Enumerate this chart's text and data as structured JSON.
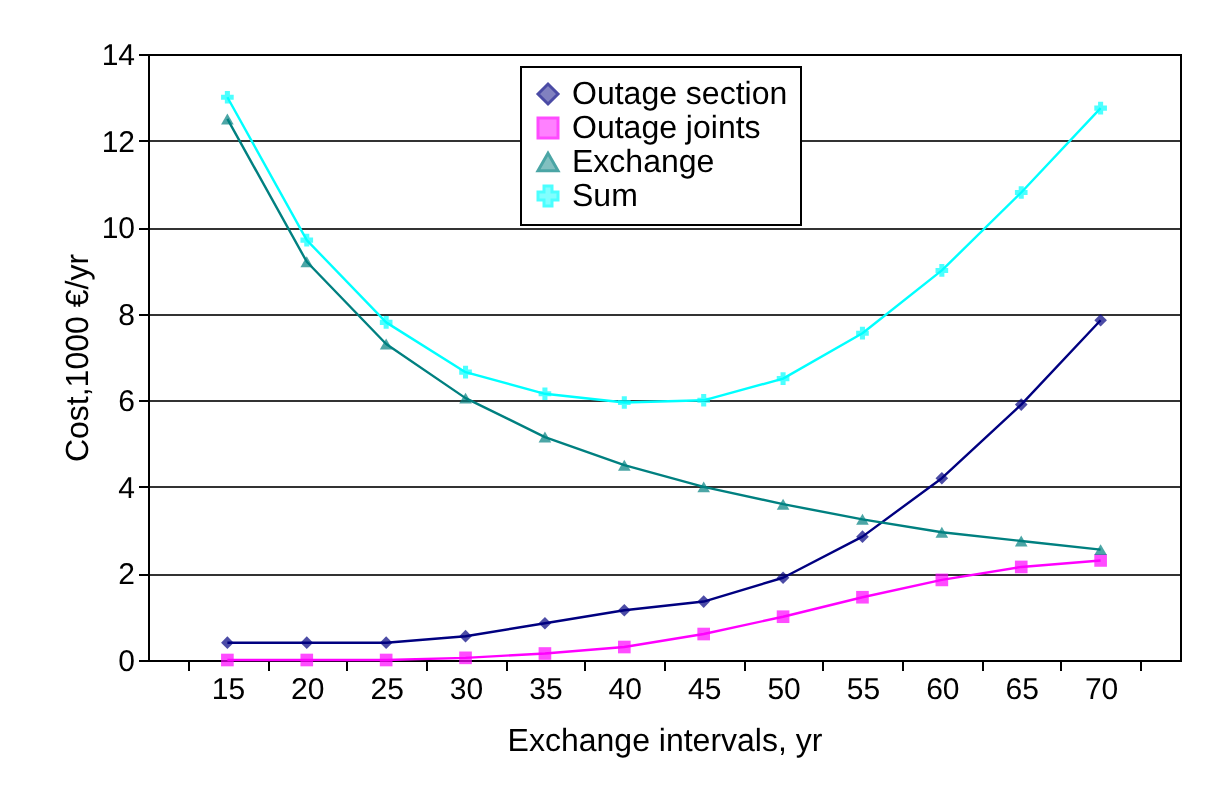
{
  "chart_data": {
    "type": "line",
    "xlabel": "Exchange intervals, yr",
    "ylabel": "Cost,1000 €/yr",
    "categories": [
      "15",
      "20",
      "25",
      "30",
      "35",
      "40",
      "45",
      "50",
      "55",
      "60",
      "65",
      "70"
    ],
    "ylim": [
      0,
      14
    ],
    "yticks": [
      0,
      2,
      4,
      6,
      8,
      10,
      12,
      14
    ],
    "grid": "y",
    "legend": "top right",
    "series": [
      {
        "name": "Outage section",
        "color": "#000080",
        "marker": "diamond",
        "values": [
          0.4,
          0.4,
          0.4,
          0.55,
          0.85,
          1.15,
          1.35,
          1.9,
          2.85,
          4.2,
          5.9,
          7.85
        ]
      },
      {
        "name": "Outage joints",
        "color": "#ff00ff",
        "marker": "square",
        "values": [
          0,
          0,
          0,
          0.05,
          0.15,
          0.3,
          0.6,
          1.0,
          1.45,
          1.85,
          2.15,
          2.3
        ]
      },
      {
        "name": "Exchange",
        "color": "#008080",
        "marker": "triangle",
        "values": [
          12.5,
          9.2,
          7.3,
          6.05,
          5.15,
          4.5,
          4.0,
          3.6,
          3.25,
          2.95,
          2.75,
          2.55
        ]
      },
      {
        "name": "Sum",
        "color": "#00ffff",
        "marker": "cross",
        "values": [
          13.0,
          9.7,
          7.8,
          6.65,
          6.15,
          5.95,
          6.0,
          6.5,
          7.55,
          9.0,
          10.8,
          12.75
        ]
      }
    ]
  }
}
